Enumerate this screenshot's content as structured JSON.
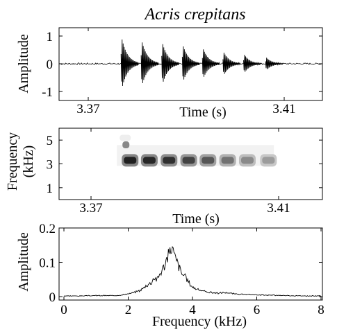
{
  "chart_data": [
    {
      "type": "line",
      "panel": "waveform",
      "title": "Acris crepitans",
      "xlabel": "Time (s)",
      "ylabel": "Amplitude",
      "x_ticks": [
        "3.37",
        "3.41"
      ],
      "y_ticks": [
        "1",
        "0",
        "-1"
      ],
      "ylim": [
        -1.2,
        1.3
      ],
      "pulses": [
        {
          "t": 3.3767,
          "amp": 1.05
        },
        {
          "t": 3.3808,
          "amp": 0.92
        },
        {
          "t": 3.385,
          "amp": 0.85
        },
        {
          "t": 3.3892,
          "amp": 0.75
        },
        {
          "t": 3.3933,
          "amp": 0.62
        },
        {
          "t": 3.3975,
          "amp": 0.48
        },
        {
          "t": 3.4017,
          "amp": 0.38
        },
        {
          "t": 3.4062,
          "amp": 0.26
        }
      ]
    },
    {
      "type": "heatmap",
      "panel": "spectrogram",
      "xlabel": "Time (s)",
      "ylabel": "Frequency (kHz)",
      "x_ticks": [
        "3.37",
        "3.41"
      ],
      "y_ticks": [
        "5",
        "3",
        "1"
      ],
      "ylim": [
        0,
        6
      ],
      "band_center_khz": 3.3,
      "pulses": [
        {
          "t": 3.3767,
          "intensity": 0.95
        },
        {
          "t": 3.3808,
          "intensity": 0.92
        },
        {
          "t": 3.385,
          "intensity": 0.88
        },
        {
          "t": 3.3892,
          "intensity": 0.8
        },
        {
          "t": 3.3933,
          "intensity": 0.72
        },
        {
          "t": 3.3975,
          "intensity": 0.6
        },
        {
          "t": 3.4017,
          "intensity": 0.5
        },
        {
          "t": 3.4062,
          "intensity": 0.42
        }
      ]
    },
    {
      "type": "line",
      "panel": "power-spectrum",
      "xlabel": "Frequency (kHz)",
      "ylabel": "Amplitude",
      "x_ticks": [
        "0",
        "2",
        "4",
        "6",
        "8"
      ],
      "y_ticks": [
        "0.2",
        "0.1",
        "0"
      ],
      "xlim": [
        0,
        8
      ],
      "ylim": [
        -0.01,
        0.2
      ],
      "peak": {
        "x": 3.35,
        "y": 0.15
      },
      "x": [
        0.0,
        0.5,
        1.0,
        1.5,
        1.8,
        2.0,
        2.2,
        2.4,
        2.6,
        2.7,
        2.8,
        2.9,
        3.0,
        3.1,
        3.2,
        3.3,
        3.35,
        3.45,
        3.55,
        3.65,
        3.75,
        3.9,
        4.0,
        4.2,
        4.4,
        4.6,
        4.8,
        5.0,
        5.3,
        5.6,
        6.0,
        6.5,
        7.0,
        7.5,
        8.0
      ],
      "y": [
        0.002,
        0.002,
        0.003,
        0.003,
        0.005,
        0.008,
        0.012,
        0.02,
        0.035,
        0.04,
        0.055,
        0.05,
        0.07,
        0.085,
        0.11,
        0.13,
        0.15,
        0.115,
        0.095,
        0.07,
        0.06,
        0.04,
        0.028,
        0.02,
        0.014,
        0.012,
        0.01,
        0.012,
        0.008,
        0.006,
        0.005,
        0.004,
        0.003,
        0.002,
        0.002
      ]
    }
  ]
}
